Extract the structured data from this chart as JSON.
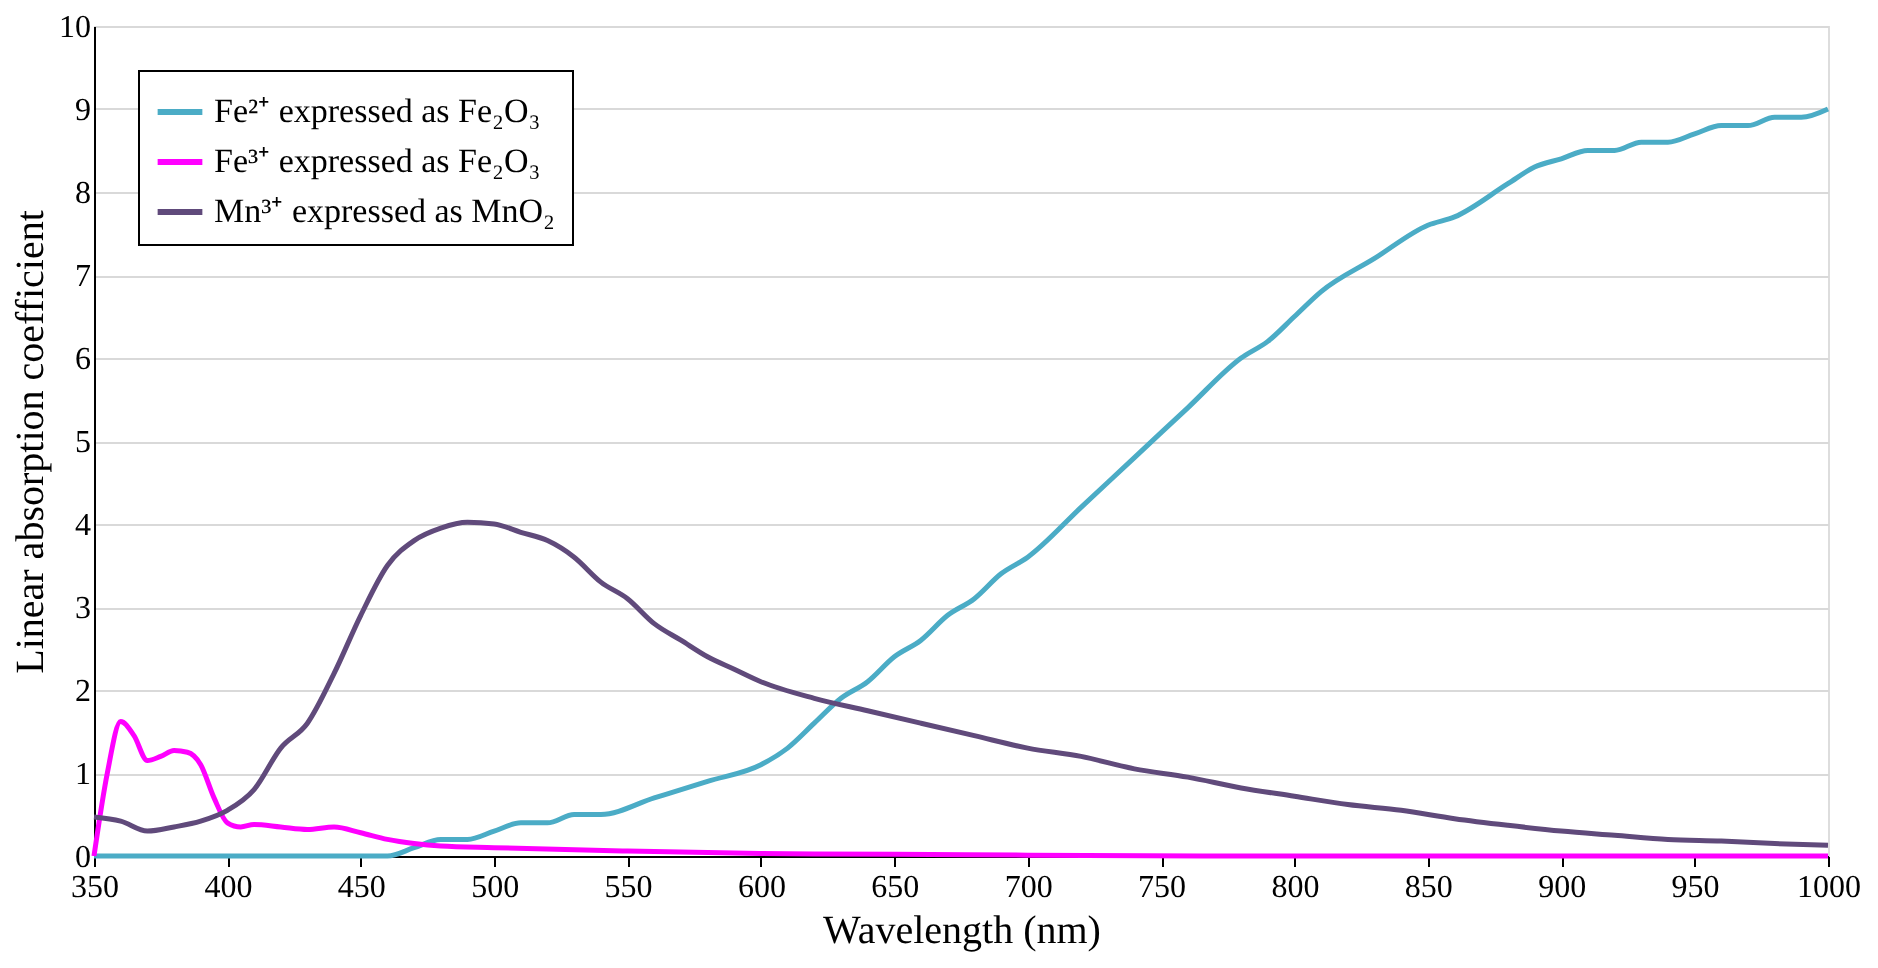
{
  "chart_data": {
    "type": "line",
    "xlabel": "Wavelength (nm)",
    "ylabel": "Linear absorption coefficient",
    "xlim": [
      350,
      1000
    ],
    "xticks": [
      350,
      400,
      450,
      500,
      550,
      600,
      650,
      700,
      750,
      800,
      850,
      900,
      950,
      1000
    ],
    "ylim": [
      0,
      10
    ],
    "yticks": [
      0,
      1,
      2,
      3,
      4,
      5,
      6,
      7,
      8,
      9,
      10
    ],
    "grid": "y",
    "legend": "top left",
    "marker": "none",
    "line_style": "solid",
    "series": [
      {
        "name": "Fe²⁺ expressed as Fe₂O₃",
        "color": "#4bacc6",
        "x": [
          350,
          400,
          460,
          470,
          480,
          490,
          500,
          510,
          520,
          530,
          540,
          560,
          580,
          600,
          610,
          620,
          630,
          640,
          650,
          660,
          670,
          680,
          690,
          700,
          720,
          740,
          760,
          780,
          790,
          800,
          810,
          830,
          850,
          860,
          880,
          890,
          900,
          910,
          920,
          930,
          940,
          950,
          960,
          970,
          980,
          990,
          1000
        ],
        "values": [
          0,
          0,
          0,
          0.1,
          0.2,
          0.2,
          0.3,
          0.4,
          0.4,
          0.5,
          0.5,
          0.7,
          0.9,
          1.1,
          1.3,
          1.6,
          1.9,
          2.1,
          2.4,
          2.6,
          2.9,
          3.1,
          3.4,
          3.6,
          4.2,
          4.8,
          5.4,
          6.0,
          6.2,
          6.5,
          6.8,
          7.2,
          7.6,
          7.7,
          8.1,
          8.3,
          8.4,
          8.5,
          8.5,
          8.6,
          8.6,
          8.7,
          8.8,
          8.8,
          8.9,
          8.9,
          9.0
        ]
      },
      {
        "name": "Fe³⁺ expressed as Fe₂O₃",
        "color": "#ff00ff",
        "x": [
          350,
          355,
          360,
          365,
          370,
          375,
          380,
          385,
          390,
          395,
          400,
          405,
          410,
          420,
          430,
          440,
          450,
          460,
          470,
          480,
          500,
          550,
          600,
          650,
          700,
          800,
          1000
        ],
        "values": [
          0,
          1.0,
          1.62,
          1.45,
          1.15,
          1.2,
          1.27,
          1.25,
          1.1,
          0.7,
          0.4,
          0.35,
          0.38,
          0.35,
          0.32,
          0.35,
          0.28,
          0.2,
          0.15,
          0.12,
          0.1,
          0.06,
          0.03,
          0.02,
          0.01,
          0,
          0
        ]
      },
      {
        "name": "Mn³⁺ expressed as MnO₂",
        "color": "#604a7b",
        "x": [
          350,
          360,
          370,
          380,
          390,
          400,
          410,
          420,
          430,
          440,
          450,
          460,
          470,
          480,
          490,
          500,
          510,
          520,
          530,
          540,
          550,
          560,
          570,
          580,
          590,
          600,
          620,
          640,
          660,
          680,
          700,
          720,
          740,
          760,
          780,
          800,
          820,
          840,
          860,
          880,
          900,
          920,
          940,
          960,
          980,
          1000
        ],
        "values": [
          0.47,
          0.42,
          0.3,
          0.35,
          0.42,
          0.55,
          0.8,
          1.3,
          1.6,
          2.2,
          2.9,
          3.5,
          3.8,
          3.95,
          4.02,
          4.0,
          3.9,
          3.8,
          3.6,
          3.3,
          3.1,
          2.8,
          2.6,
          2.4,
          2.25,
          2.1,
          1.9,
          1.75,
          1.6,
          1.45,
          1.3,
          1.2,
          1.05,
          0.95,
          0.82,
          0.72,
          0.62,
          0.55,
          0.45,
          0.37,
          0.3,
          0.25,
          0.2,
          0.18,
          0.15,
          0.13
        ]
      }
    ]
  }
}
